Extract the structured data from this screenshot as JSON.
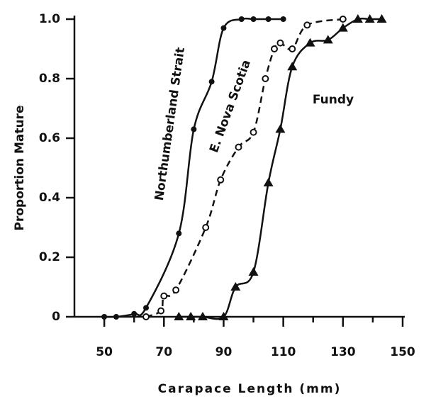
{
  "chart_data": {
    "type": "scatter",
    "xlabel": "Carapace Length (mm)",
    "ylabel": "Proportion Mature",
    "xlim": [
      40,
      150
    ],
    "ylim": [
      0,
      1
    ],
    "xticks": [
      50,
      70,
      90,
      110,
      130,
      150
    ],
    "xminorticks": [
      60,
      80,
      100,
      120,
      140
    ],
    "yticks": [
      0,
      0.2,
      0.4,
      0.6,
      0.8,
      {
        "value": 1,
        "label": "1.0"
      }
    ],
    "series": [
      {
        "name": "Northumberland Strait",
        "color": "#111111",
        "marker": "filled-circle",
        "linestyle": "solid",
        "x": [
          50,
          54,
          60,
          64,
          75,
          80,
          86,
          90,
          96,
          100,
          105,
          110
        ],
        "values": [
          0,
          0,
          0.01,
          0.03,
          0.28,
          0.63,
          0.79,
          0.97,
          1,
          1,
          1,
          1
        ]
      },
      {
        "name": "E. Nova Scotia",
        "color": "#111111",
        "marker": "open-circle",
        "linestyle": "dashed",
        "x": [
          64,
          69,
          70,
          74,
          84,
          89,
          95,
          100,
          104,
          107,
          109,
          113,
          118,
          130
        ],
        "values": [
          0,
          0.02,
          0.07,
          0.09,
          0.3,
          0.46,
          0.57,
          0.62,
          0.8,
          0.9,
          0.92,
          0.9,
          0.98,
          1
        ]
      },
      {
        "name": "Fundy",
        "color": "#111111",
        "marker": "triangle",
        "linestyle": "solid",
        "x": [
          75,
          79,
          83,
          90,
          94,
          100,
          105,
          109,
          113,
          119,
          125,
          130,
          135,
          139,
          143
        ],
        "values": [
          0,
          0,
          0,
          0,
          0.1,
          0.15,
          0.45,
          0.63,
          0.84,
          0.92,
          0.93,
          0.97,
          1,
          1,
          1
        ]
      }
    ]
  }
}
